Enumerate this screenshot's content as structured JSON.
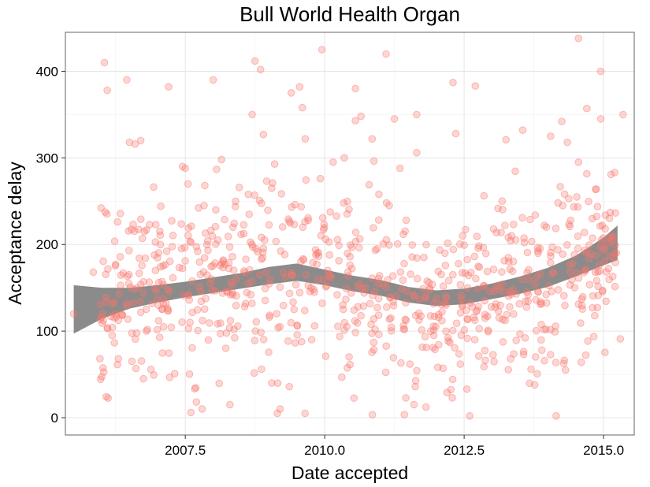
{
  "chart_data": {
    "type": "scatter",
    "title": "Bull World Health Organ",
    "xlabel": "Date accepted",
    "ylabel": "Acceptance delay",
    "xlim": [
      2005.35,
      2015.55
    ],
    "ylim": [
      -20,
      445
    ],
    "xticks": [
      2007.5,
      2010.0,
      2012.5,
      2015.0
    ],
    "xtick_labels": [
      "2007.5",
      "2010.0",
      "2012.5",
      "2015.0"
    ],
    "yticks": [
      0,
      100,
      200,
      300,
      400
    ],
    "ytick_labels": [
      "0",
      "100",
      "200",
      "300",
      "400"
    ],
    "grid": true,
    "legend": "none",
    "point_color": "#f8766d",
    "point_fill_opacity": 0.3,
    "band_color": "#777777",
    "n_points": 900,
    "points_highlight": [
      [
        2005.5,
        120
      ],
      [
        2005.85,
        168
      ],
      [
        2006.05,
        410
      ],
      [
        2006.1,
        378
      ],
      [
        2006.45,
        390
      ],
      [
        2006.5,
        318
      ],
      [
        2006.6,
        316
      ],
      [
        2006.7,
        320
      ],
      [
        2006.3,
        68
      ],
      [
        2006.75,
        45
      ],
      [
        2007.2,
        382
      ],
      [
        2007.45,
        290
      ],
      [
        2007.5,
        288
      ],
      [
        2007.55,
        270
      ],
      [
        2007.85,
        268
      ],
      [
        2008.0,
        390
      ],
      [
        2008.15,
        298
      ],
      [
        2007.6,
        6
      ],
      [
        2007.7,
        18
      ],
      [
        2007.8,
        10
      ],
      [
        2008.3,
        15
      ],
      [
        2008.75,
        412
      ],
      [
        2008.85,
        402
      ],
      [
        2008.7,
        350
      ],
      [
        2008.9,
        327
      ],
      [
        2009.05,
        265
      ],
      [
        2009.05,
        40
      ],
      [
        2009.15,
        5
      ],
      [
        2009.2,
        10
      ],
      [
        2009.4,
        375
      ],
      [
        2009.55,
        382
      ],
      [
        2009.6,
        358
      ],
      [
        2009.65,
        322
      ],
      [
        2009.95,
        425
      ],
      [
        2010.15,
        295
      ],
      [
        2010.35,
        300
      ],
      [
        2010.55,
        380
      ],
      [
        2010.55,
        343
      ],
      [
        2010.65,
        348
      ],
      [
        2010.85,
        322
      ],
      [
        2011.1,
        420
      ],
      [
        2011.25,
        345
      ],
      [
        2011.35,
        288
      ],
      [
        2011.65,
        350
      ],
      [
        2011.65,
        306
      ],
      [
        2011.6,
        15
      ],
      [
        2012.3,
        387
      ],
      [
        2012.35,
        328
      ],
      [
        2012.7,
        383
      ],
      [
        2012.55,
        33
      ],
      [
        2012.6,
        2
      ],
      [
        2013.25,
        321
      ],
      [
        2013.55,
        332
      ],
      [
        2013.7,
        56
      ],
      [
        2014.05,
        325
      ],
      [
        2014.25,
        342
      ],
      [
        2014.35,
        318
      ],
      [
        2014.15,
        2
      ],
      [
        2014.55,
        438
      ],
      [
        2014.7,
        357
      ],
      [
        2014.95,
        400
      ],
      [
        2014.95,
        345
      ],
      [
        2015.2,
        283
      ],
      [
        2015.35,
        350
      ],
      [
        2014.6,
        64
      ],
      [
        2015.3,
        91
      ]
    ],
    "smooth_center": [
      [
        2005.5,
        125
      ],
      [
        2006.0,
        132
      ],
      [
        2006.5,
        138
      ],
      [
        2007.0,
        143
      ],
      [
        2007.5,
        148
      ],
      [
        2008.0,
        153
      ],
      [
        2008.5,
        158
      ],
      [
        2009.0,
        164
      ],
      [
        2009.5,
        168
      ],
      [
        2010.0,
        162
      ],
      [
        2010.5,
        155
      ],
      [
        2011.0,
        150
      ],
      [
        2011.5,
        142
      ],
      [
        2012.0,
        138
      ],
      [
        2012.5,
        140
      ],
      [
        2013.0,
        146
      ],
      [
        2013.5,
        153
      ],
      [
        2014.0,
        162
      ],
      [
        2014.5,
        175
      ],
      [
        2015.0,
        192
      ],
      [
        2015.25,
        202
      ]
    ],
    "smooth_halfwidth": [
      28,
      18,
      12,
      10,
      9,
      9,
      9,
      10,
      10,
      9,
      9,
      9,
      9,
      9,
      9,
      9,
      10,
      11,
      12,
      16,
      20
    ]
  }
}
